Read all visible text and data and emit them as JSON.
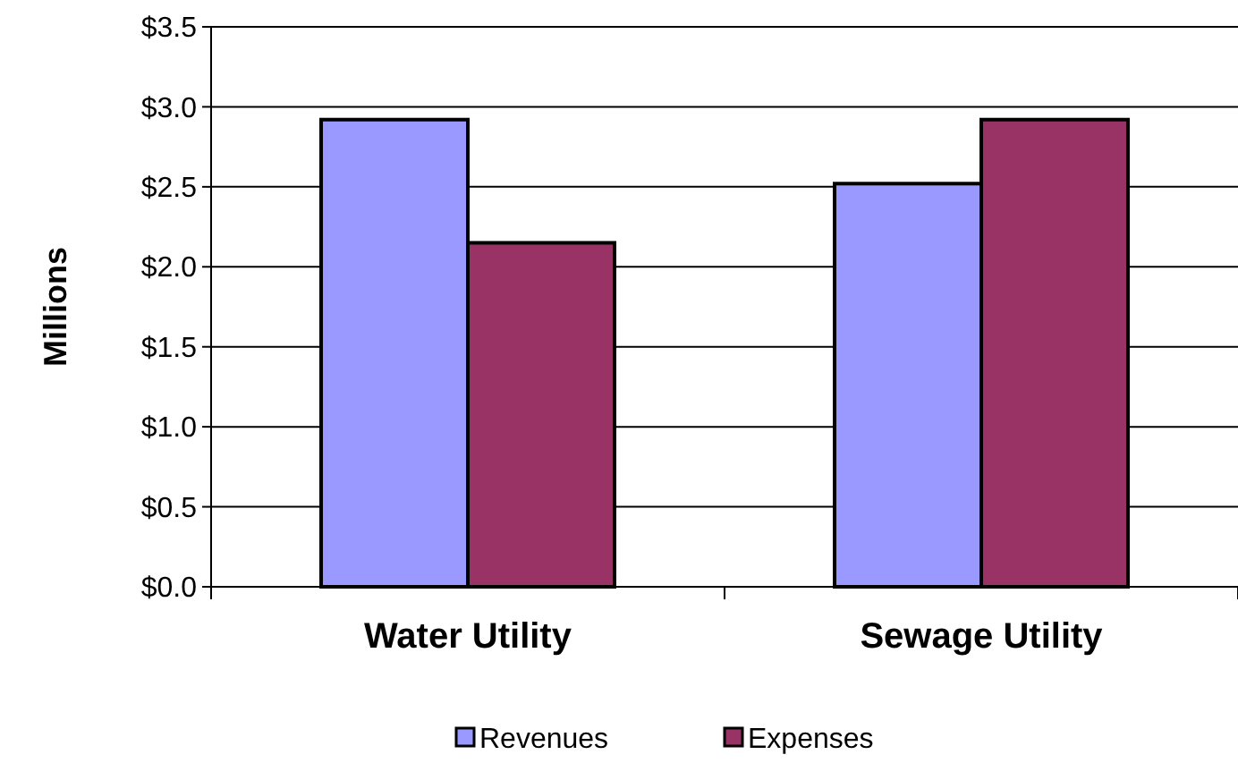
{
  "chart_data": {
    "type": "bar",
    "ylabel": "Millions",
    "categories": [
      "Water Utility",
      "Sewage Utility"
    ],
    "series": [
      {
        "name": "Revenues",
        "color": "#9999ff",
        "values": [
          2.92,
          2.52
        ]
      },
      {
        "name": "Expenses",
        "color": "#993366",
        "values": [
          2.15,
          2.92
        ]
      }
    ],
    "ylim": [
      0,
      3.5
    ],
    "yticks": [
      {
        "value": 0,
        "label": "$0.0"
      },
      {
        "value": 0.5,
        "label": "$0.5"
      },
      {
        "value": 1,
        "label": "$1.0"
      },
      {
        "value": 1.5,
        "label": "$1.5"
      },
      {
        "value": 2,
        "label": "$2.0"
      },
      {
        "value": 2.5,
        "label": "$2.5"
      },
      {
        "value": 3,
        "label": "$3.0"
      },
      {
        "value": 3.5,
        "label": "$3.5"
      }
    ],
    "grid": "y",
    "legend": "bottom"
  }
}
